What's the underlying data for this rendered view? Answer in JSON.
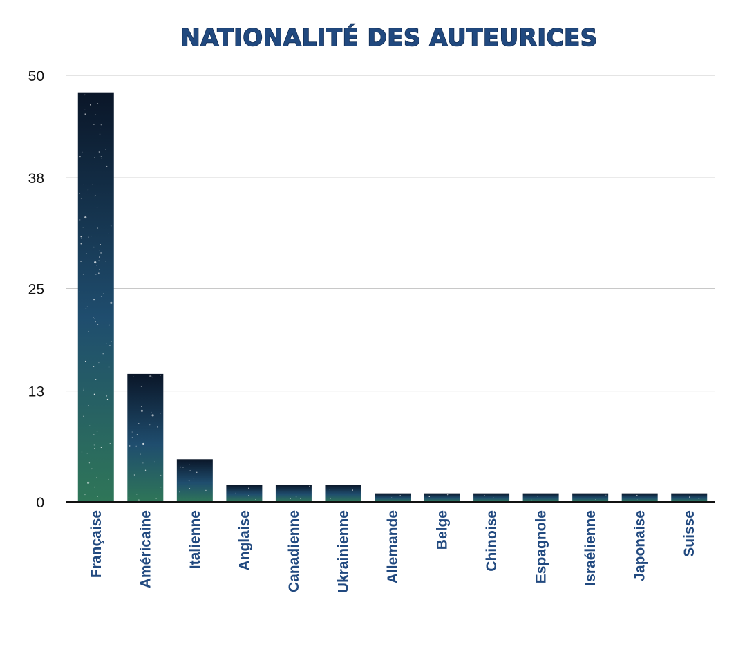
{
  "chart_data": {
    "type": "bar",
    "title": "NATIONALITÉ DES AUTEURICES",
    "categories": [
      "Française",
      "Américaine",
      "Italienne",
      "Anglaise",
      "Canadienne",
      "Ukrainienne",
      "Allemande",
      "Belge",
      "Chinoise",
      "Espagnole",
      "Israélienne",
      "Japonaise",
      "Suisse"
    ],
    "values": [
      48,
      15,
      5,
      2,
      2,
      2,
      1,
      1,
      1,
      1,
      1,
      1,
      1
    ],
    "yticks": [
      0,
      13,
      25,
      38,
      50
    ],
    "ylim": [
      0,
      50
    ],
    "xlabel": "",
    "ylabel": "",
    "grid": true,
    "colors": {
      "title": "#21497f",
      "tick_label_x": "#21497f",
      "bar_top": "#0a1628",
      "bar_mid": "#1f4d6e",
      "bar_bottom": "#2f7658"
    }
  }
}
